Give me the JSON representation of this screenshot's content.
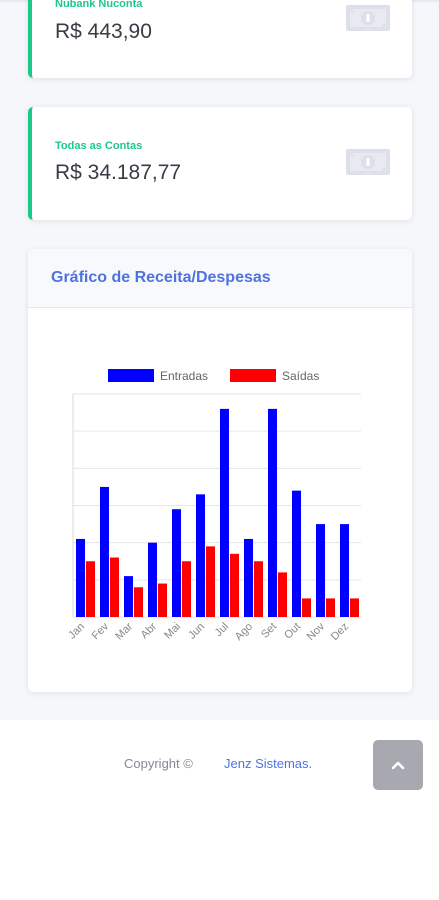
{
  "accounts": [
    {
      "name": "Nubank Nuconta",
      "balance": "R$ 443,90",
      "icon": "money-bill-icon"
    },
    {
      "name": "Todas as Contas",
      "balance": "R$ 34.187,77",
      "icon": "money-bill-icon"
    }
  ],
  "chart_card": {
    "title": "Gráfico de Receita/Despesas"
  },
  "chart_data": {
    "type": "bar",
    "categories": [
      "Jan",
      "Fev",
      "Mar",
      "Abr",
      "Mai",
      "Jun",
      "Jul",
      "Ago",
      "Set",
      "Out",
      "Nov",
      "Dez"
    ],
    "series": [
      {
        "name": "Entradas",
        "color": "#0000ff",
        "values": [
          21,
          35,
          11,
          20,
          29,
          33,
          56,
          21,
          56,
          34,
          25,
          25
        ]
      },
      {
        "name": "Saídas",
        "color": "#ff0000",
        "values": [
          15,
          16,
          8,
          9,
          15,
          19,
          17,
          15,
          12,
          5,
          5,
          5
        ]
      }
    ],
    "ylim": [
      0,
      60
    ],
    "grid": true,
    "legend": "top",
    "y_tick_labels_visible": false
  },
  "footer": {
    "copyright": "Copyright ©",
    "company": "Jenz Sistemas."
  },
  "scroll_top": {
    "icon": "chevron-up-icon"
  }
}
